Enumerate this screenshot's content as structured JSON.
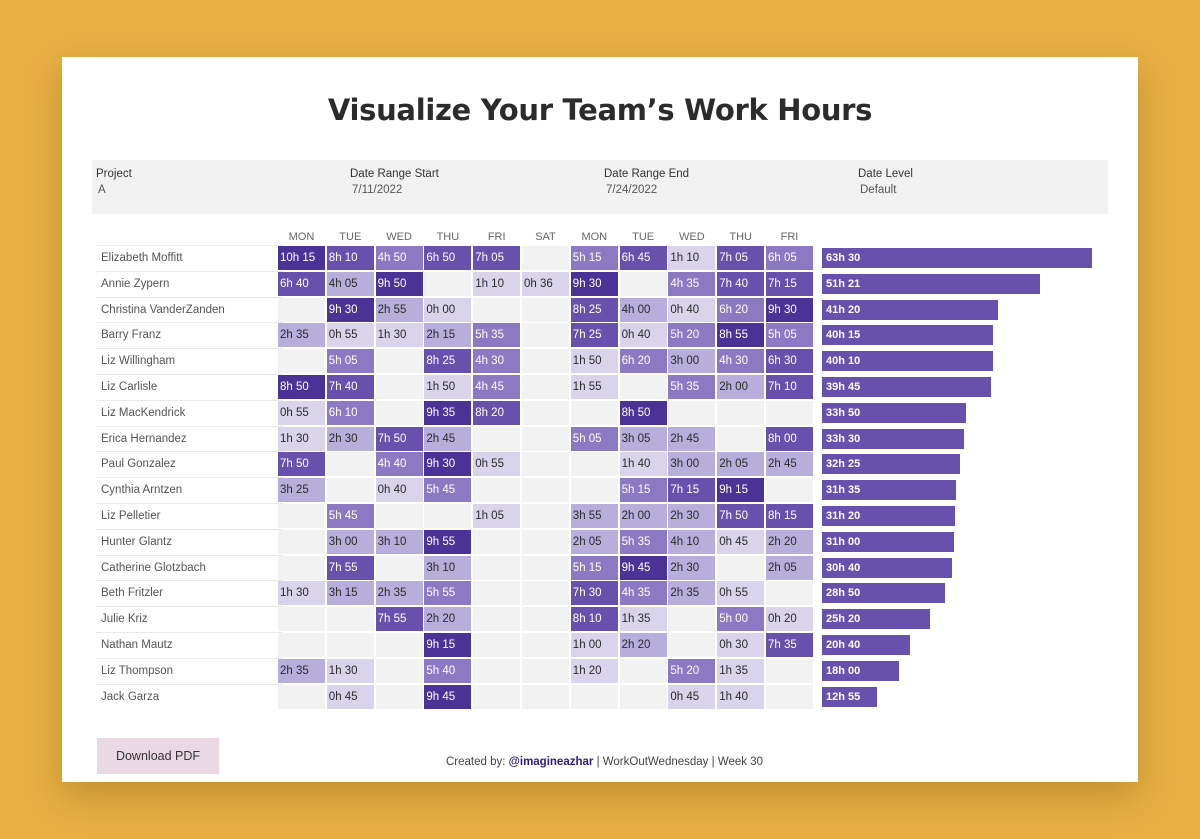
{
  "title": "Visualize Your Team’s Work Hours",
  "filters": [
    {
      "label": "Project",
      "value": "A"
    },
    {
      "label": "Date Range Start",
      "value": "7/11/2022"
    },
    {
      "label": "Date Range End",
      "value": "7/24/2022"
    },
    {
      "label": "Date Level",
      "value": "Default"
    }
  ],
  "download_label": "Download PDF",
  "footer": {
    "prefix": "Created by: ",
    "handle": "@imagineazhar",
    "suffix": " | WorkOutWednesday | Week 30"
  },
  "colors": {
    "background": "#e8b045",
    "bar": "#6751ad",
    "cell_empty": "#f2f2f2",
    "button": "#ead8e4"
  },
  "chart_data": {
    "type": "heatmap",
    "columns": [
      "MON",
      "TUE",
      "WED",
      "THU",
      "FRI",
      "SAT",
      "MON",
      "TUE",
      "WED",
      "THU",
      "FRI"
    ],
    "rows": [
      {
        "name": "Elizabeth Moffitt",
        "cells": [
          "10h 15",
          "8h 10",
          "4h 50",
          "6h 50",
          "7h 05",
          "",
          "5h 15",
          "6h 45",
          "1h 10",
          "7h 05",
          "6h 05"
        ],
        "total": "63h 30",
        "total_hours": 63.5
      },
      {
        "name": "Annie Zypern",
        "cells": [
          "6h 40",
          "4h 05",
          "9h 50",
          "",
          "1h 10",
          "0h 36",
          "9h 30",
          "",
          "4h 35",
          "7h 40",
          "7h 15"
        ],
        "total": "51h 21",
        "total_hours": 51.35
      },
      {
        "name": "Christina VanderZanden",
        "cells": [
          "",
          "9h 30",
          "2h 55",
          "0h 00",
          "",
          "",
          "8h 25",
          "4h 00",
          "0h 40",
          "6h 20",
          "9h 30"
        ],
        "total": "41h 20",
        "total_hours": 41.33
      },
      {
        "name": "Barry Franz",
        "cells": [
          "2h 35",
          "0h 55",
          "1h 30",
          "2h 15",
          "5h 35",
          "",
          "7h 25",
          "0h 40",
          "5h 20",
          "8h 55",
          "5h 05"
        ],
        "total": "40h 15",
        "total_hours": 40.25
      },
      {
        "name": "Liz Willingham",
        "cells": [
          "",
          "5h 05",
          "",
          "8h 25",
          "4h 30",
          "",
          "1h 50",
          "6h 20",
          "3h 00",
          "4h 30",
          "6h 30"
        ],
        "total": "40h 10",
        "total_hours": 40.17
      },
      {
        "name": "Liz Carlisle",
        "cells": [
          "8h 50",
          "7h 40",
          "",
          "1h 50",
          "4h 45",
          "",
          "1h 55",
          "",
          "5h 35",
          "2h 00",
          "7h 10"
        ],
        "total": "39h 45",
        "total_hours": 39.75
      },
      {
        "name": "Liz MacKendrick",
        "cells": [
          "0h 55",
          "6h 10",
          "",
          "9h 35",
          "8h 20",
          "",
          "",
          "8h 50",
          "",
          "",
          ""
        ],
        "total": "33h 50",
        "total_hours": 33.83
      },
      {
        "name": "Erica Hernandez",
        "cells": [
          "1h 30",
          "2h 30",
          "7h 50",
          "2h 45",
          "",
          "",
          "5h 05",
          "3h 05",
          "2h 45",
          "",
          "8h 00"
        ],
        "total": "33h 30",
        "total_hours": 33.5
      },
      {
        "name": "Paul Gonzalez",
        "cells": [
          "7h 50",
          "",
          "4h 40",
          "9h 30",
          "0h 55",
          "",
          "",
          "1h 40",
          "3h 00",
          "2h 05",
          "2h 45"
        ],
        "total": "32h 25",
        "total_hours": 32.42
      },
      {
        "name": "Cynthia Arntzen",
        "cells": [
          "3h 25",
          "",
          "0h 40",
          "5h 45",
          "",
          "",
          "",
          "5h 15",
          "7h 15",
          "9h 15",
          ""
        ],
        "total": "31h 35",
        "total_hours": 31.58
      },
      {
        "name": "Liz Pelletier",
        "cells": [
          "",
          "5h 45",
          "",
          "",
          "1h 05",
          "",
          "3h 55",
          "2h 00",
          "2h 30",
          "7h 50",
          "8h 15"
        ],
        "total": "31h 20",
        "total_hours": 31.33
      },
      {
        "name": "Hunter Glantz",
        "cells": [
          "",
          "3h 00",
          "3h 10",
          "9h 55",
          "",
          "",
          "2h 05",
          "5h 35",
          "4h 10",
          "0h 45",
          "2h 20"
        ],
        "total": "31h 00",
        "total_hours": 31.0
      },
      {
        "name": "Catherine Glotzbach",
        "cells": [
          "",
          "7h 55",
          "",
          "3h 10",
          "",
          "",
          "5h 15",
          "9h 45",
          "2h 30",
          "",
          "2h 05"
        ],
        "total": "30h 40",
        "total_hours": 30.67
      },
      {
        "name": "Beth Fritzler",
        "cells": [
          "1h 30",
          "3h 15",
          "2h 35",
          "5h 55",
          "",
          "",
          "7h 30",
          "4h 35",
          "2h 35",
          "0h 55",
          ""
        ],
        "total": "28h 50",
        "total_hours": 28.83
      },
      {
        "name": "Julie Kriz",
        "cells": [
          "",
          "",
          "7h 55",
          "2h 20",
          "",
          "",
          "8h 10",
          "1h 35",
          "",
          "5h 00",
          "0h 20"
        ],
        "total": "25h 20",
        "total_hours": 25.33
      },
      {
        "name": "Nathan Mautz",
        "cells": [
          "",
          "",
          "",
          "9h 15",
          "",
          "",
          "1h 00",
          "2h 20",
          "",
          "0h 30",
          "7h 35"
        ],
        "total": "20h 40",
        "total_hours": 20.67
      },
      {
        "name": "Liz Thompson",
        "cells": [
          "2h 35",
          "1h 30",
          "",
          "5h 40",
          "",
          "",
          "1h 20",
          "",
          "5h 20",
          "1h 35",
          ""
        ],
        "total": "18h 00",
        "total_hours": 18.0
      },
      {
        "name": "Jack Garza",
        "cells": [
          "",
          "0h 45",
          "",
          "9h 45",
          "",
          "",
          "",
          "",
          "0h 45",
          "1h 40",
          ""
        ],
        "total": "12h 55",
        "total_hours": 12.92
      }
    ]
  }
}
